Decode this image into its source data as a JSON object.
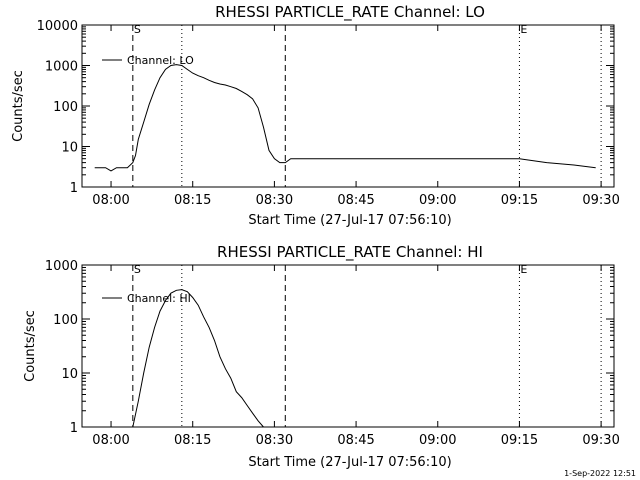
{
  "footer": {
    "timestamp": "1-Sep-2022 12:51"
  },
  "chart_data": [
    {
      "type": "line",
      "title": "RHESSI PARTICLE_RATE Channel: LO",
      "xlabel": "Start Time (27-Jul-17 07:56:10)",
      "ylabel": "Counts/sec",
      "yscale": "log",
      "ylim": [
        1,
        10000
      ],
      "xlim_minutes": [
        -1.5,
        96.2
      ],
      "x_ticks": [
        "08:00",
        "08:15",
        "08:30",
        "08:45",
        "09:00",
        "09:15",
        "09:30"
      ],
      "y_ticks": [
        "1",
        "10",
        "100",
        "1000",
        "10000"
      ],
      "legend": "Channel: LO",
      "markers": [
        {
          "label": "S",
          "style": "dashed",
          "time": "08:04"
        },
        {
          "label": "",
          "style": "dotted",
          "time": "08:13"
        },
        {
          "label": "",
          "style": "dashed",
          "time": "08:32"
        },
        {
          "label": "E",
          "style": "dotted",
          "time": "09:15"
        },
        {
          "label": "",
          "style": "dotted",
          "time": "09:30"
        }
      ],
      "series": [
        {
          "name": "Channel: LO",
          "x": [
            "07:57",
            "07:58",
            "07:59",
            "08:00",
            "08:01",
            "08:02",
            "08:03",
            "08:04",
            "08:04:30",
            "08:05",
            "08:06",
            "08:07",
            "08:08",
            "08:09",
            "08:10",
            "08:11",
            "08:12",
            "08:13",
            "08:14",
            "08:15",
            "08:16",
            "08:17",
            "08:18",
            "08:19",
            "08:20",
            "08:21",
            "08:22",
            "08:23",
            "08:24",
            "08:25",
            "08:26",
            "08:27",
            "08:28",
            "08:29",
            "08:30",
            "08:31",
            "08:32",
            "08:33",
            "08:35",
            "08:40",
            "08:45",
            "08:50",
            "08:55",
            "09:00",
            "09:05",
            "09:10",
            "09:15",
            "09:20",
            "09:25",
            "09:29"
          ],
          "y": [
            3,
            3,
            3,
            2.5,
            3,
            3,
            3,
            4,
            6,
            15,
            40,
            110,
            250,
            500,
            800,
            1000,
            1050,
            1000,
            800,
            650,
            560,
            500,
            430,
            380,
            350,
            330,
            300,
            270,
            230,
            190,
            150,
            90,
            30,
            8,
            5,
            4,
            4,
            5,
            5,
            5,
            5,
            5,
            5,
            5,
            5,
            5,
            5,
            4,
            3.5,
            3
          ]
        }
      ]
    },
    {
      "type": "line",
      "title": "RHESSI PARTICLE_RATE Channel: HI",
      "xlabel": "Start Time (27-Jul-17 07:56:10)",
      "ylabel": "Counts/sec",
      "yscale": "log",
      "ylim": [
        1,
        1000
      ],
      "xlim_minutes": [
        -1.5,
        96.2
      ],
      "x_ticks": [
        "08:00",
        "08:15",
        "08:30",
        "08:45",
        "09:00",
        "09:15",
        "09:30"
      ],
      "y_ticks": [
        "1",
        "10",
        "100",
        "1000"
      ],
      "legend": "Channel: HI",
      "markers": [
        {
          "label": "S",
          "style": "dashed",
          "time": "08:04"
        },
        {
          "label": "",
          "style": "dotted",
          "time": "08:13"
        },
        {
          "label": "",
          "style": "dashed",
          "time": "08:32"
        },
        {
          "label": "E",
          "style": "dotted",
          "time": "09:15"
        },
        {
          "label": "",
          "style": "dotted",
          "time": "09:30"
        }
      ],
      "series": [
        {
          "name": "Channel: HI",
          "x": [
            "08:04",
            "08:05",
            "08:06",
            "08:07",
            "08:08",
            "08:09",
            "08:10",
            "08:11",
            "08:12",
            "08:13",
            "08:14",
            "08:15",
            "08:16",
            "08:17",
            "08:18",
            "08:19",
            "08:20",
            "08:21",
            "08:22",
            "08:23",
            "08:24",
            "08:25",
            "08:26",
            "08:27",
            "08:28"
          ],
          "y": [
            1,
            3,
            10,
            30,
            70,
            140,
            220,
            300,
            340,
            350,
            320,
            250,
            180,
            110,
            70,
            40,
            20,
            12,
            8,
            4.5,
            3.5,
            2.5,
            1.8,
            1.3,
            1
          ]
        }
      ]
    }
  ]
}
